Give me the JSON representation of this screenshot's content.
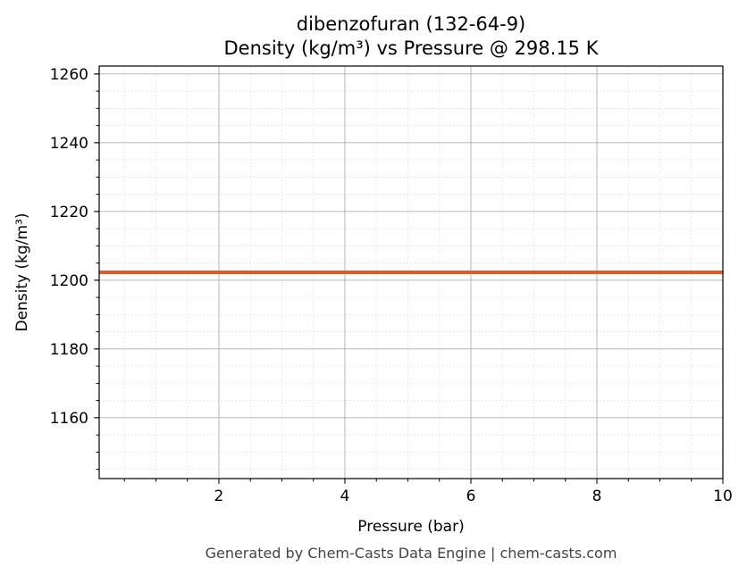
{
  "chart_data": {
    "type": "line",
    "title": "dibenzofuran (132-64-9)",
    "subtitle": "Density (kg/m³) vs Pressure @ 298.15 K",
    "xlabel": "Pressure (bar)",
    "ylabel": "Density (kg/m³)",
    "xlim": [
      0.1,
      10
    ],
    "ylim": [
      1142.3,
      1262.3
    ],
    "xticks": [
      2,
      4,
      6,
      8,
      10
    ],
    "yticks": [
      1160,
      1180,
      1200,
      1220,
      1240,
      1260
    ],
    "grid": true,
    "series": [
      {
        "x": [
          0.1,
          10
        ],
        "y": [
          1202.3,
          1202.3
        ],
        "color": "#E05A24"
      }
    ],
    "footer": "Generated by Chem-Casts Data Engine | chem-casts.com"
  }
}
